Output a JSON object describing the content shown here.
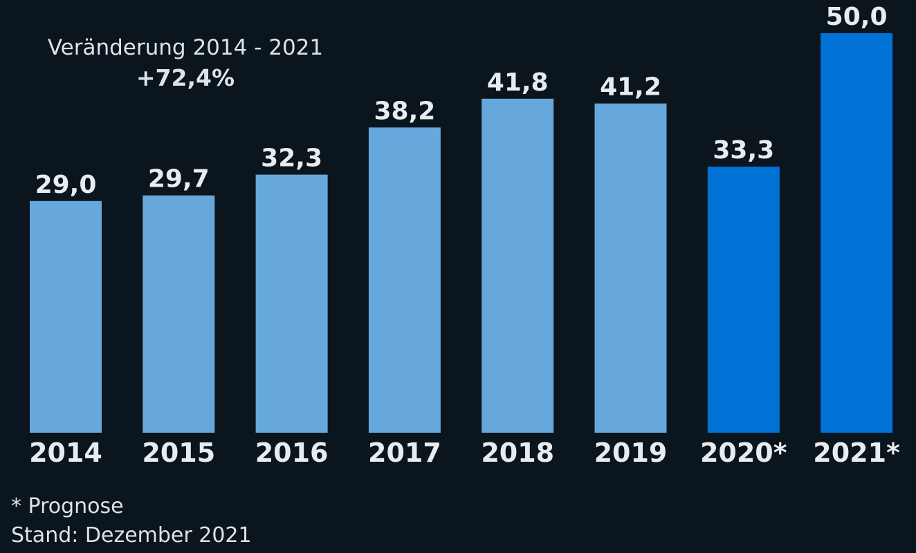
{
  "chart_data": {
    "type": "bar",
    "categories": [
      "2014",
      "2015",
      "2016",
      "2017",
      "2018",
      "2019",
      "2020*",
      "2021*"
    ],
    "values": [
      29.0,
      29.7,
      32.3,
      38.2,
      41.8,
      41.2,
      33.3,
      50.0
    ],
    "value_labels": [
      "29,0",
      "29,7",
      "32,3",
      "38,2",
      "41,8",
      "41,2",
      "33,3",
      "50,0"
    ],
    "forecast": [
      false,
      false,
      false,
      false,
      false,
      false,
      true,
      true
    ],
    "title": "",
    "xlabel": "",
    "ylabel": "",
    "ylim": [
      0,
      50
    ],
    "grid": false,
    "colors": {
      "actual": "#67a8dc",
      "forecast": "#0072d6",
      "background": "#0b151d",
      "text": "#e8ecef"
    }
  },
  "annotation": {
    "title": "Veränderung 2014 - 2021",
    "value": "+72,4%"
  },
  "footnotes": {
    "forecast_note": "* Prognose",
    "status": "Stand: Dezember 2021"
  }
}
